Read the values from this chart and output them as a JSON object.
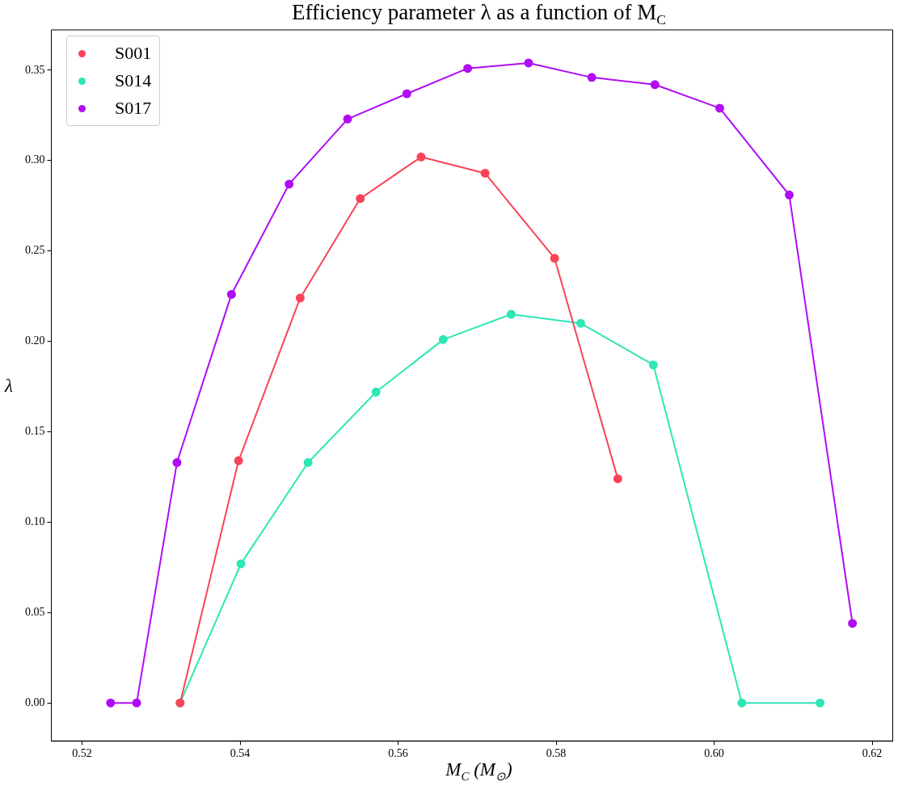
{
  "chart_data": {
    "type": "line",
    "title": "Efficiency parameter λ as a function of M$_{C}$",
    "xlabel": "M$_{C}$ (M$_{⊙}$)",
    "ylabel": "λ",
    "xlim": [
      0.5161,
      0.6226
    ],
    "xticks": [
      {
        "value": 0.52,
        "label": "0.52"
      },
      {
        "value": 0.54,
        "label": "0.54"
      },
      {
        "value": 0.56,
        "label": "0.56"
      },
      {
        "value": 0.58,
        "label": "0.58"
      },
      {
        "value": 0.6,
        "label": "0.60"
      },
      {
        "value": 0.62,
        "label": "0.62"
      }
    ],
    "ylim": [
      -0.021,
      0.3723
    ],
    "yticks": [
      {
        "value": 0,
        "label": "0.00"
      },
      {
        "value": 0.05,
        "label": "0.05"
      },
      {
        "value": 0.1,
        "label": "0.10"
      },
      {
        "value": 0.15,
        "label": "0.15"
      },
      {
        "value": 0.2,
        "label": "0.20"
      },
      {
        "value": 0.25,
        "label": "0.25"
      },
      {
        "value": 0.3,
        "label": "0.30"
      },
      {
        "value": 0.35,
        "label": "0.35"
      }
    ],
    "grid": false,
    "legend": "top left",
    "marker": "circle",
    "line_style": "solid",
    "series": [
      {
        "name": "S001",
        "color": "#f94457",
        "x": [
          0.5324,
          0.5398,
          0.5476,
          0.5552,
          0.5629,
          0.571,
          0.5798,
          0.5878
        ],
        "values": [
          0,
          0.134,
          0.224,
          0.279,
          0.302,
          0.293,
          0.246,
          0.124
        ]
      },
      {
        "name": "S014",
        "color": "#2ee6b6",
        "x": [
          0.5324,
          0.5401,
          0.5486,
          0.5572,
          0.5657,
          0.5743,
          0.5831,
          0.5923,
          0.6035,
          0.6134
        ],
        "values": [
          0,
          0.077,
          0.133,
          0.172,
          0.201,
          0.215,
          0.21,
          0.187,
          0,
          0
        ]
      },
      {
        "name": "S017",
        "color": "#b00cf5",
        "x": [
          0.5236,
          0.5269,
          0.532,
          0.5389,
          0.5462,
          0.5536,
          0.5611,
          0.5688,
          0.5765,
          0.5845,
          0.5925,
          0.6007,
          0.6095,
          0.6175
        ],
        "values": [
          0,
          0,
          0.133,
          0.226,
          0.287,
          0.323,
          0.337,
          0.351,
          0.354,
          0.346,
          0.342,
          0.329,
          0.281,
          0.044
        ]
      }
    ]
  }
}
